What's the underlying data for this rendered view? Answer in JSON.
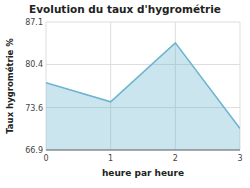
{
  "chart_data": {
    "type": "area",
    "title": "Evolution du taux d'hygrométrie",
    "xlabel": "heure par heure",
    "ylabel": "Taux hygrométrie %",
    "x": [
      0,
      1,
      2,
      3
    ],
    "values": [
      77.5,
      74.5,
      83.8,
      70.3
    ],
    "color": "#6ab4d0",
    "xlim": [
      0,
      3
    ],
    "ylim": [
      66.9,
      87.1
    ],
    "xticks": [
      0,
      1,
      2,
      3
    ],
    "yticks": [
      66.9,
      73.6,
      80.4,
      87.1
    ],
    "grid": true
  }
}
